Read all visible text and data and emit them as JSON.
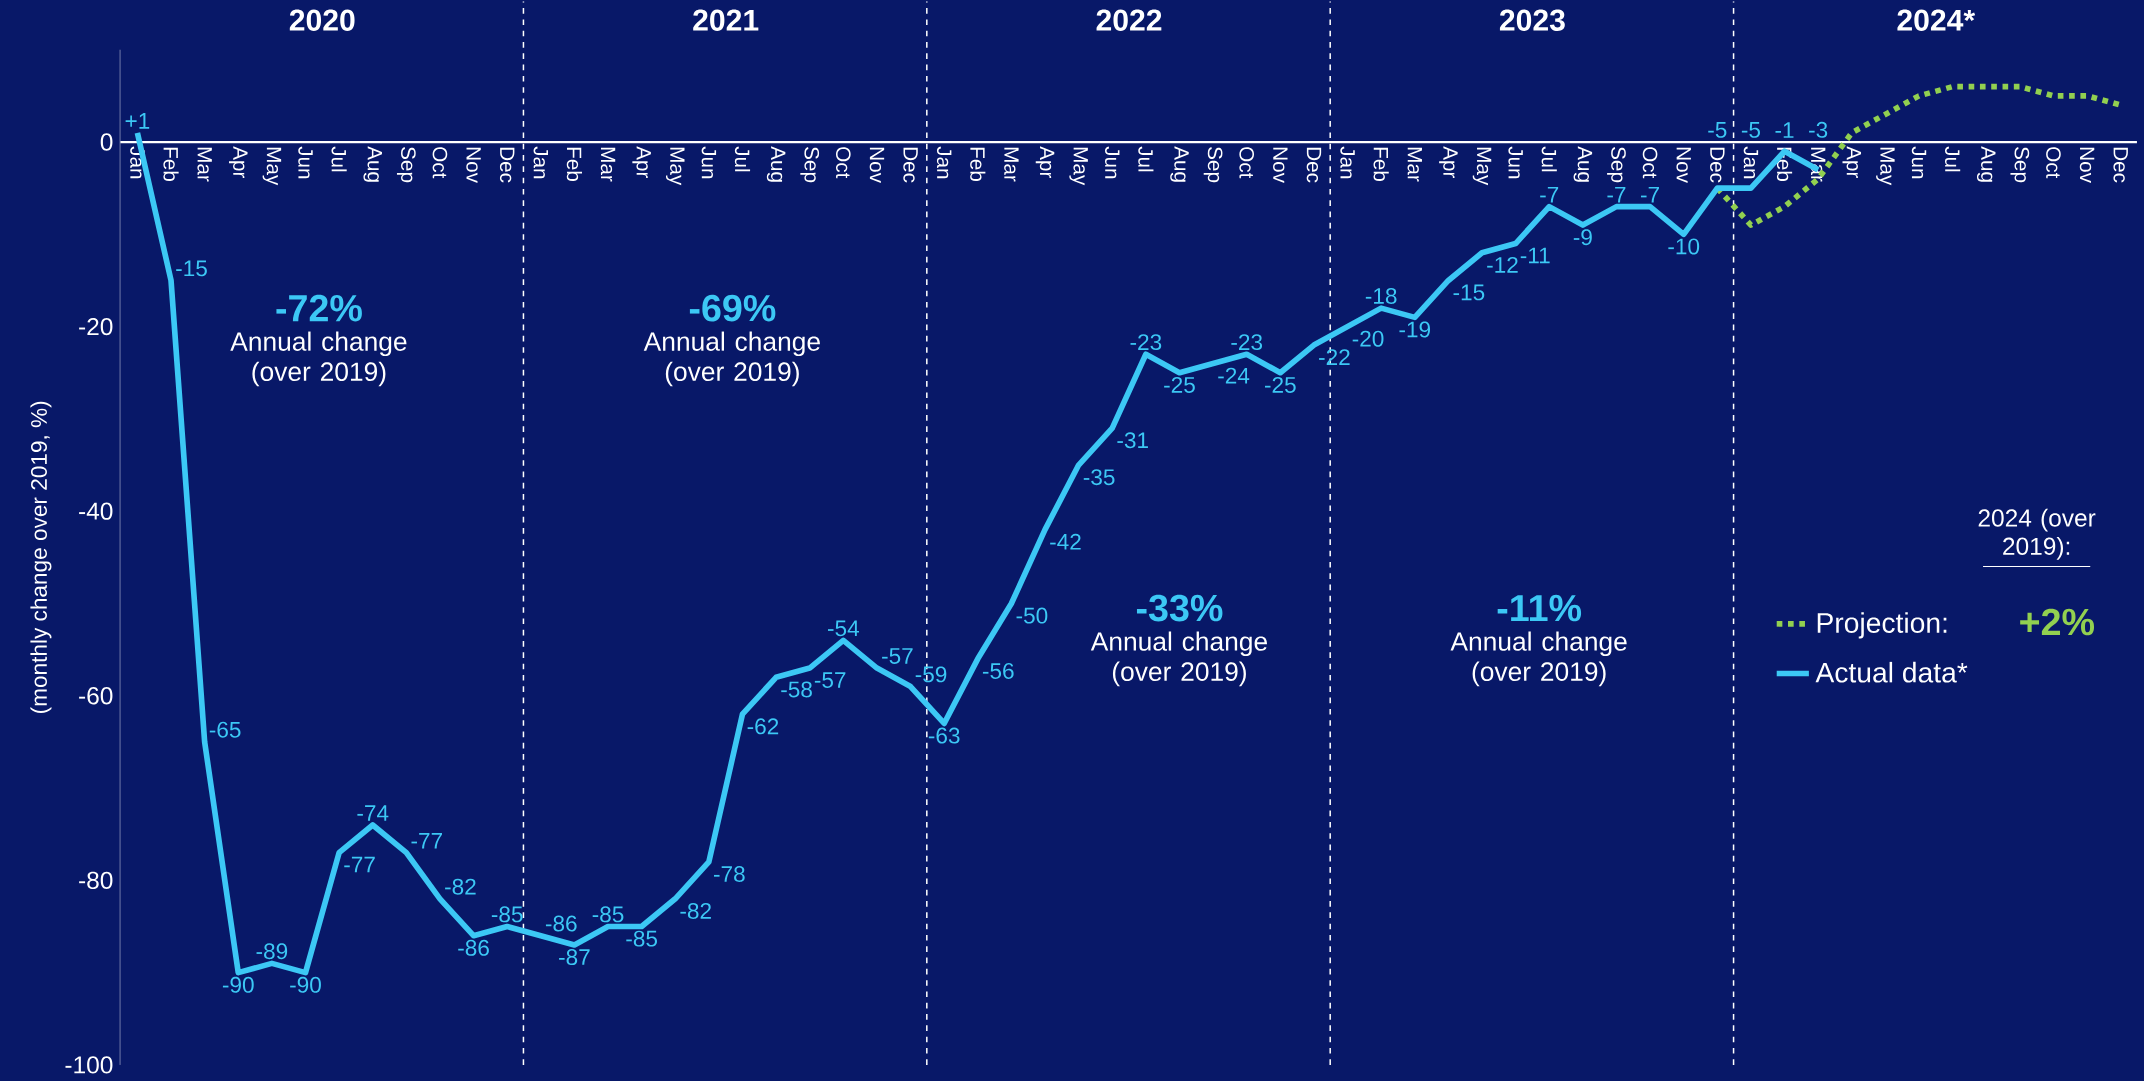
{
  "chart_data": {
    "type": "line",
    "ylabel": "(monthly change over 2019, %)",
    "xlim": [
      "2019-12-16",
      "2024-12-16"
    ],
    "ylim": [
      -100,
      10
    ],
    "yticks": [
      -100,
      -80,
      -60,
      -40,
      -20,
      0
    ],
    "xticks": [
      {
        "value": "2020-01",
        "label": "Jan"
      },
      {
        "value": "2020-02",
        "label": "Feb"
      },
      {
        "value": "2020-03",
        "label": "Mar"
      },
      {
        "value": "2020-04",
        "label": "Apr"
      },
      {
        "value": "2020-05",
        "label": "May"
      },
      {
        "value": "2020-06",
        "label": "Jun"
      },
      {
        "value": "2020-07",
        "label": "Jul"
      },
      {
        "value": "2020-08",
        "label": "Aug"
      },
      {
        "value": "2020-09",
        "label": "Sep"
      },
      {
        "value": "2020-10",
        "label": "Oct"
      },
      {
        "value": "2020-11",
        "label": "Nov"
      },
      {
        "value": "2020-12",
        "label": "Dec"
      },
      {
        "value": "2021-01",
        "label": "Jan"
      },
      {
        "value": "2021-02",
        "label": "Feb"
      },
      {
        "value": "2021-03",
        "label": "Mar"
      },
      {
        "value": "2021-04",
        "label": "Apr"
      },
      {
        "value": "2021-05",
        "label": "May"
      },
      {
        "value": "2021-06",
        "label": "Jun"
      },
      {
        "value": "2021-07",
        "label": "Jul"
      },
      {
        "value": "2021-08",
        "label": "Aug"
      },
      {
        "value": "2021-09",
        "label": "Sep"
      },
      {
        "value": "2021-10",
        "label": "Oct"
      },
      {
        "value": "2021-11",
        "label": "Nov"
      },
      {
        "value": "2021-12",
        "label": "Dec"
      },
      {
        "value": "2022-01",
        "label": "Jan"
      },
      {
        "value": "2022-02",
        "label": "Feb"
      },
      {
        "value": "2022-03",
        "label": "Mar"
      },
      {
        "value": "2022-04",
        "label": "Apr"
      },
      {
        "value": "2022-05",
        "label": "May"
      },
      {
        "value": "2022-06",
        "label": "Jun"
      },
      {
        "value": "2022-07",
        "label": "Jul"
      },
      {
        "value": "2022-08",
        "label": "Aug"
      },
      {
        "value": "2022-09",
        "label": "Sep"
      },
      {
        "value": "2022-10",
        "label": "Oct"
      },
      {
        "value": "2022-11",
        "label": "Nov"
      },
      {
        "value": "2022-12",
        "label": "Dec"
      },
      {
        "value": "2023-01",
        "label": "Jan"
      },
      {
        "value": "2023-02",
        "label": "Feb"
      },
      {
        "value": "2023-03",
        "label": "Mar"
      },
      {
        "value": "2023-04",
        "label": "Apr"
      },
      {
        "value": "2023-05",
        "label": "May"
      },
      {
        "value": "2023-06",
        "label": "Jun"
      },
      {
        "value": "2023-07",
        "label": "Jul"
      },
      {
        "value": "2023-08",
        "label": "Aug"
      },
      {
        "value": "2023-09",
        "label": "Sep"
      },
      {
        "value": "2023-10",
        "label": "Oct"
      },
      {
        "value": "2023-11",
        "label": "Nov"
      },
      {
        "value": "2023-12",
        "label": "Dec"
      },
      {
        "value": "2024-01",
        "label": "Jan"
      },
      {
        "value": "2024-02",
        "label": "Feb"
      },
      {
        "value": "2024-03",
        "label": "Mar"
      },
      {
        "value": "2024-04",
        "label": "Apr"
      },
      {
        "value": "2024-05",
        "label": "May"
      },
      {
        "value": "2024-06",
        "label": "Jun"
      },
      {
        "value": "2024-07",
        "label": "Jul"
      },
      {
        "value": "2024-08",
        "label": "Aug"
      },
      {
        "value": "2024-09",
        "label": "Sep"
      },
      {
        "value": "2024-10",
        "label": "Oct"
      },
      {
        "value": "2024-11",
        "label": "Nov"
      },
      {
        "value": "2024-12",
        "label": "Dec"
      }
    ],
    "legend": "right",
    "series": [
      {
        "name": "Projection:",
        "color": "#92d050",
        "line_style": "dashed",
        "x": [
          "2023-12",
          "2024-01",
          "2024-02",
          "2024-03",
          "2024-04",
          "2024-05",
          "2024-06",
          "2024-07",
          "2024-08",
          "2024-09",
          "2024-10",
          "2024-11",
          "2024-12"
        ],
        "values": [
          -5,
          -9,
          -7,
          -4,
          1,
          3,
          5,
          6,
          6,
          6,
          5,
          5,
          4
        ]
      },
      {
        "name": "Actual data*",
        "color": "#3cc8f5",
        "line_style": "solid",
        "x": [
          "2020-01",
          "2020-02",
          "2020-03",
          "2020-04",
          "2020-05",
          "2020-06",
          "2020-07",
          "2020-08",
          "2020-09",
          "2020-10",
          "2020-11",
          "2020-12",
          "2021-01",
          "2021-02",
          "2021-03",
          "2021-04",
          "2021-05",
          "2021-06",
          "2021-07",
          "2021-08",
          "2021-09",
          "2021-10",
          "2021-11",
          "2021-12",
          "2022-01",
          "2022-02",
          "2022-03",
          "2022-04",
          "2022-05",
          "2022-06",
          "2022-07",
          "2022-08",
          "2022-09",
          "2022-10",
          "2022-11",
          "2022-12",
          "2023-01",
          "2023-02",
          "2023-03",
          "2023-04",
          "2023-05",
          "2023-06",
          "2023-07",
          "2023-08",
          "2023-09",
          "2023-10",
          "2023-11",
          "2023-12",
          "2024-01",
          "2024-02",
          "2024-03"
        ],
        "values": [
          1,
          -15,
          -65,
          -90,
          -89,
          -90,
          -77,
          -74,
          -77,
          -82,
          -86,
          -85,
          -86,
          -87,
          -85,
          -85,
          -82,
          -78,
          -62,
          -58,
          -57,
          -54,
          -57,
          -59,
          -63,
          -56,
          -50,
          -42,
          -35,
          -31,
          -23,
          -25,
          -24,
          -23,
          -25,
          -22,
          -20,
          -18,
          -19,
          -15,
          -12,
          -11,
          -7,
          -9,
          -7,
          -7,
          -10,
          -5,
          -5,
          -1,
          -3
        ],
        "value_labels": [
          "+1",
          "-15",
          "-65",
          "-90",
          "-89",
          "-90",
          "-77",
          "-74",
          "-77",
          "-82",
          "-86",
          "-85",
          "-86",
          "-87",
          "-85",
          "-85",
          "-82",
          "-78",
          "-62",
          "-58",
          "-57",
          "-54",
          "-57",
          "-59",
          "-63",
          "-56",
          "-50",
          "-42",
          "-35",
          "-31",
          "-23",
          "-25",
          "-24",
          "-23",
          "-25",
          "-22",
          "-20",
          "-18",
          "-19",
          "-15",
          "-12",
          "-11",
          "-7",
          "-9",
          "-7",
          "-7",
          "-10",
          "-5",
          "-5",
          "-1",
          "-3"
        ]
      }
    ],
    "ref_lines": [
      {
        "axis": "x",
        "value": "2020-12-16",
        "color": "#ffffff",
        "line_style": "dashed"
      },
      {
        "axis": "x",
        "value": "2021-12-16",
        "color": "#ffffff",
        "line_style": "dashed"
      },
      {
        "axis": "x",
        "value": "2022-12-16",
        "color": "#ffffff",
        "line_style": "dashed"
      },
      {
        "axis": "x",
        "value": "2023-12-16",
        "color": "#ffffff",
        "line_style": "dashed"
      }
    ],
    "annotations": [
      "2020",
      "2021",
      "2022",
      "2023",
      "2024*",
      "-72%",
      "Annual change (over 2019)",
      "-69%",
      "Annual change (over 2019)",
      "-33%",
      "Annual change (over 2019)",
      "-11%",
      "Annual change (over 2019)",
      "2024 (over 2019):",
      "+2%"
    ]
  }
}
